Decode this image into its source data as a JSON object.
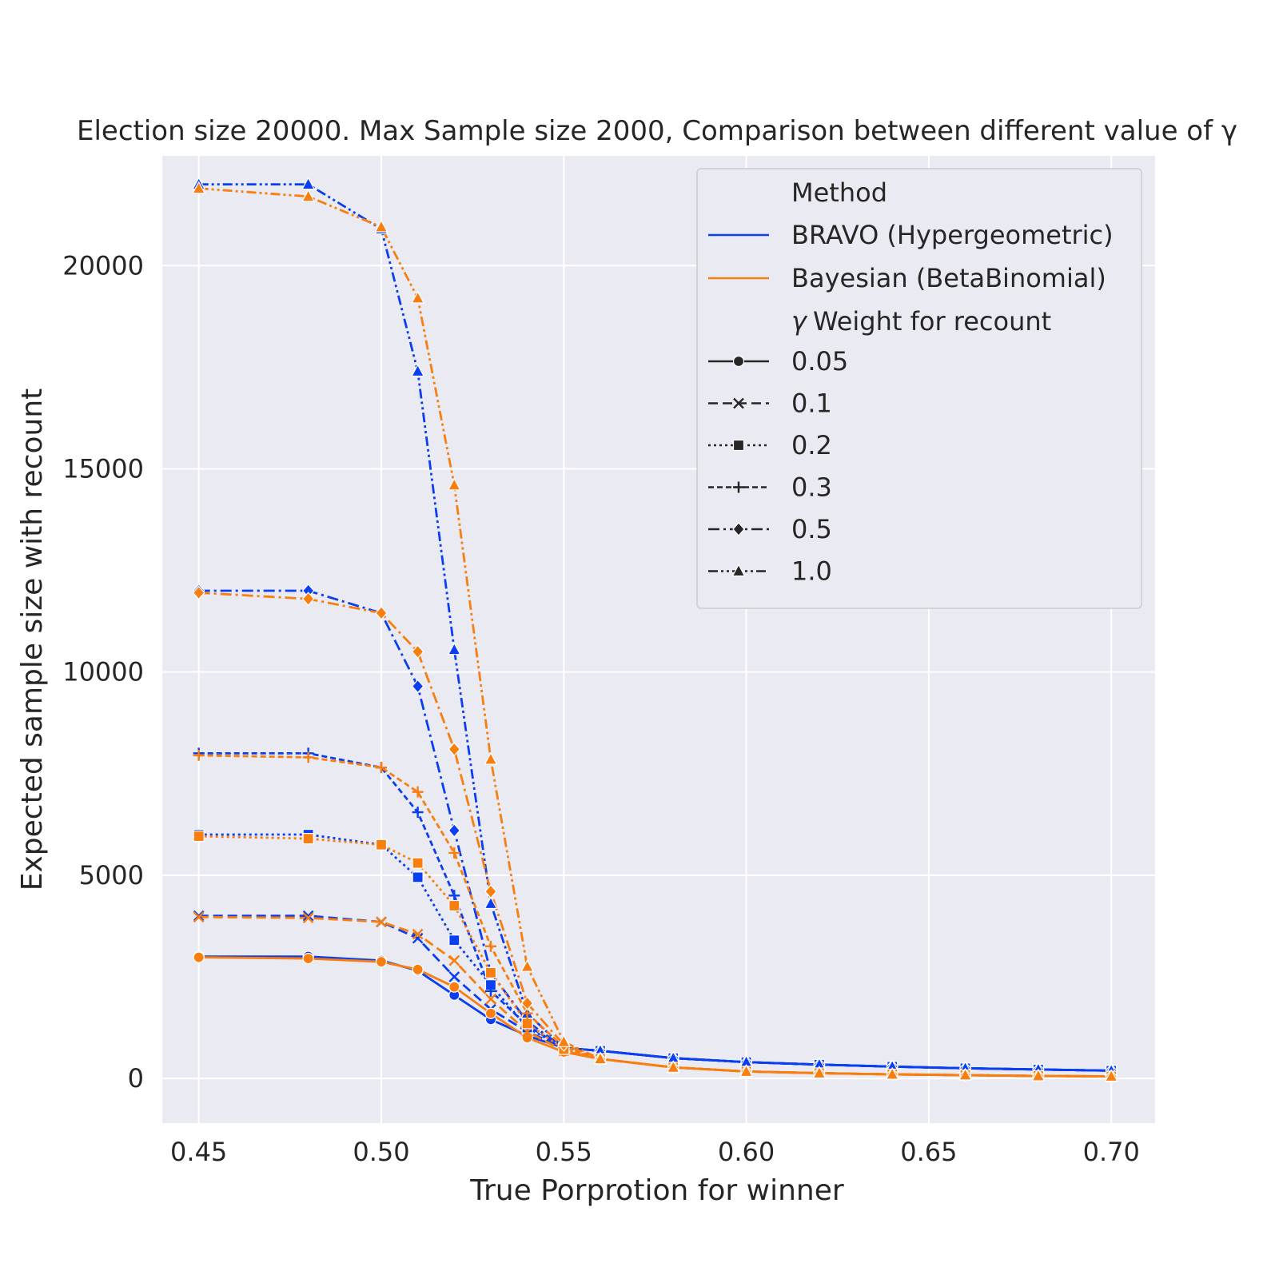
{
  "chart_data": {
    "type": "line",
    "title": "Election size 20000. Max Sample size 2000, Comparison between different value of γ",
    "xlabel": "True Porprotion for winner",
    "ylabel": "Expected sample size with recount",
    "xlim": [
      0.44,
      0.712
    ],
    "ylim": [
      -1100,
      22700
    ],
    "xticks": [
      "0.45",
      "0.50",
      "0.55",
      "0.60",
      "0.65",
      "0.70"
    ],
    "yticks": [
      "0",
      "5000",
      "10000",
      "15000",
      "20000"
    ],
    "grid": true,
    "legend_position": "top-right",
    "x": [
      0.45,
      0.48,
      0.5,
      0.51,
      0.52,
      0.53,
      0.54,
      0.55,
      0.56,
      0.58,
      0.6,
      0.62,
      0.64,
      0.66,
      0.68,
      0.7
    ],
    "series": [
      {
        "method": "BRAVO (Hypergeometric)",
        "gamma": "0.05",
        "values": [
          3000,
          3000,
          2900,
          2650,
          2050,
          1450,
          1050,
          750,
          680,
          500,
          400,
          340,
          290,
          250,
          220,
          190
        ]
      },
      {
        "method": "BRAVO (Hypergeometric)",
        "gamma": "0.1",
        "values": [
          4000,
          4000,
          3850,
          3450,
          2500,
          1700,
          1150,
          750,
          680,
          500,
          400,
          340,
          290,
          250,
          220,
          190
        ]
      },
      {
        "method": "BRAVO (Hypergeometric)",
        "gamma": "0.2",
        "values": [
          6000,
          6000,
          5750,
          4950,
          3400,
          2300,
          1250,
          750,
          680,
          500,
          400,
          340,
          290,
          250,
          220,
          190
        ]
      },
      {
        "method": "BRAVO (Hypergeometric)",
        "gamma": "0.3",
        "values": [
          8000,
          8000,
          7650,
          6550,
          4500,
          2150,
          1300,
          750,
          680,
          500,
          400,
          340,
          290,
          250,
          220,
          190
        ]
      },
      {
        "method": "BRAVO (Hypergeometric)",
        "gamma": "0.5",
        "values": [
          12000,
          12000,
          11450,
          9650,
          6100,
          2600,
          1400,
          750,
          680,
          500,
          400,
          340,
          290,
          250,
          220,
          190
        ]
      },
      {
        "method": "BRAVO (Hypergeometric)",
        "gamma": "1.0",
        "values": [
          22000,
          22000,
          20900,
          17400,
          10550,
          4300,
          1600,
          750,
          680,
          500,
          400,
          340,
          290,
          250,
          220,
          190
        ]
      },
      {
        "method": "Bayesian (BetaBinomial)",
        "gamma": "0.05",
        "values": [
          2980,
          2950,
          2870,
          2680,
          2250,
          1600,
          1000,
          650,
          480,
          270,
          170,
          130,
          100,
          80,
          60,
          50
        ]
      },
      {
        "method": "Bayesian (BetaBinomial)",
        "gamma": "0.1",
        "values": [
          3970,
          3950,
          3850,
          3550,
          2900,
          1950,
          1150,
          680,
          480,
          270,
          170,
          130,
          100,
          80,
          60,
          50
        ]
      },
      {
        "method": "Bayesian (BetaBinomial)",
        "gamma": "0.2",
        "values": [
          5960,
          5900,
          5750,
          5300,
          4250,
          2600,
          1350,
          720,
          480,
          270,
          170,
          130,
          100,
          80,
          60,
          50
        ]
      },
      {
        "method": "Bayesian (BetaBinomial)",
        "gamma": "0.3",
        "values": [
          7950,
          7900,
          7650,
          7050,
          5550,
          3250,
          1600,
          770,
          480,
          270,
          170,
          130,
          100,
          80,
          60,
          50
        ]
      },
      {
        "method": "Bayesian (BetaBinomial)",
        "gamma": "0.5",
        "values": [
          11950,
          11800,
          11450,
          10500,
          8100,
          4600,
          1850,
          830,
          480,
          270,
          170,
          130,
          100,
          80,
          60,
          50
        ]
      },
      {
        "method": "Bayesian (BetaBinomial)",
        "gamma": "1.0",
        "values": [
          21900,
          21700,
          20950,
          19200,
          14600,
          7850,
          2750,
          900,
          480,
          270,
          170,
          130,
          100,
          80,
          60,
          50
        ]
      }
    ],
    "legend": {
      "method_header": "Method",
      "methods": [
        {
          "name": "BRAVO (Hypergeometric)",
          "color": "#0a3ef0"
        },
        {
          "name": "Bayesian (BetaBinomial)",
          "color": "#f77e0f"
        }
      ],
      "gamma_header_symbol": "γ",
      "gamma_header_text": "Weight for recount",
      "gammas": [
        {
          "label": "0.05",
          "marker": "circle",
          "dash": "solid"
        },
        {
          "label": "0.1",
          "marker": "x",
          "dash": "dashed"
        },
        {
          "label": "0.2",
          "marker": "square",
          "dash": "dotted"
        },
        {
          "label": "0.3",
          "marker": "plus",
          "dash": "densely-dashed"
        },
        {
          "label": "0.5",
          "marker": "diamond",
          "dash": "dash-dot"
        },
        {
          "label": "1.0",
          "marker": "triangle",
          "dash": "dash-dot-dot"
        }
      ]
    },
    "colors": {
      "background": "#eaeaf2",
      "grid": "#ffffff",
      "legend_bg": "#eaeaf2",
      "legend_border": "#cccccc"
    }
  }
}
